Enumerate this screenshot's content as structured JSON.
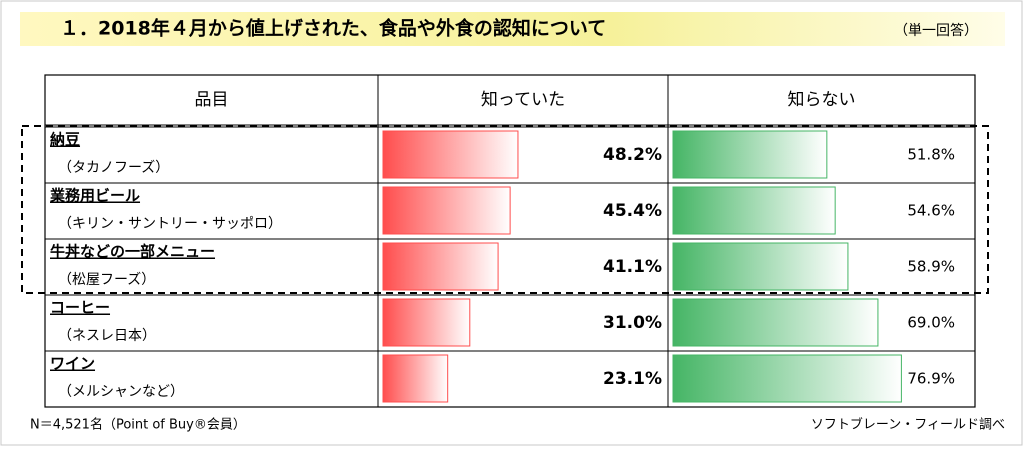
{
  "chart_data": {
    "type": "bar",
    "title": "１．2018年４月から値上げされた、食品や外食の認知について",
    "subtitle": "（単一回答）",
    "category_header": "品目",
    "categories": [
      "納豆",
      "業務用ビール",
      "牛丼などの一部メニュー",
      "コーヒー",
      "ワイン"
    ],
    "category_notes": [
      "（タカノフーズ）",
      "（キリン・サントリー・サッポロ）",
      "（松屋フーズ）",
      "（ネスレ日本）",
      "（メルシャンなど）"
    ],
    "series": [
      {
        "name": "知っていた",
        "color": "#ff4d4d",
        "values": [
          48.2,
          45.4,
          41.1,
          31.0,
          23.1
        ],
        "value_labels": [
          "48.2%",
          "45.4%",
          "41.1%",
          "31.0%",
          "23.1%"
        ]
      },
      {
        "name": "知らない",
        "color": "#45b565",
        "values": [
          51.8,
          54.6,
          58.9,
          69.0,
          76.9
        ],
        "value_labels": [
          "51.8%",
          "54.6%",
          "58.9%",
          "69.0%",
          "76.9%"
        ]
      }
    ],
    "xlim": [
      0,
      100
    ],
    "footnote_left": "N＝4,521名（Point of Buy®会員）",
    "footnote_right": "ソフトブレーン・フィールド調べ"
  }
}
